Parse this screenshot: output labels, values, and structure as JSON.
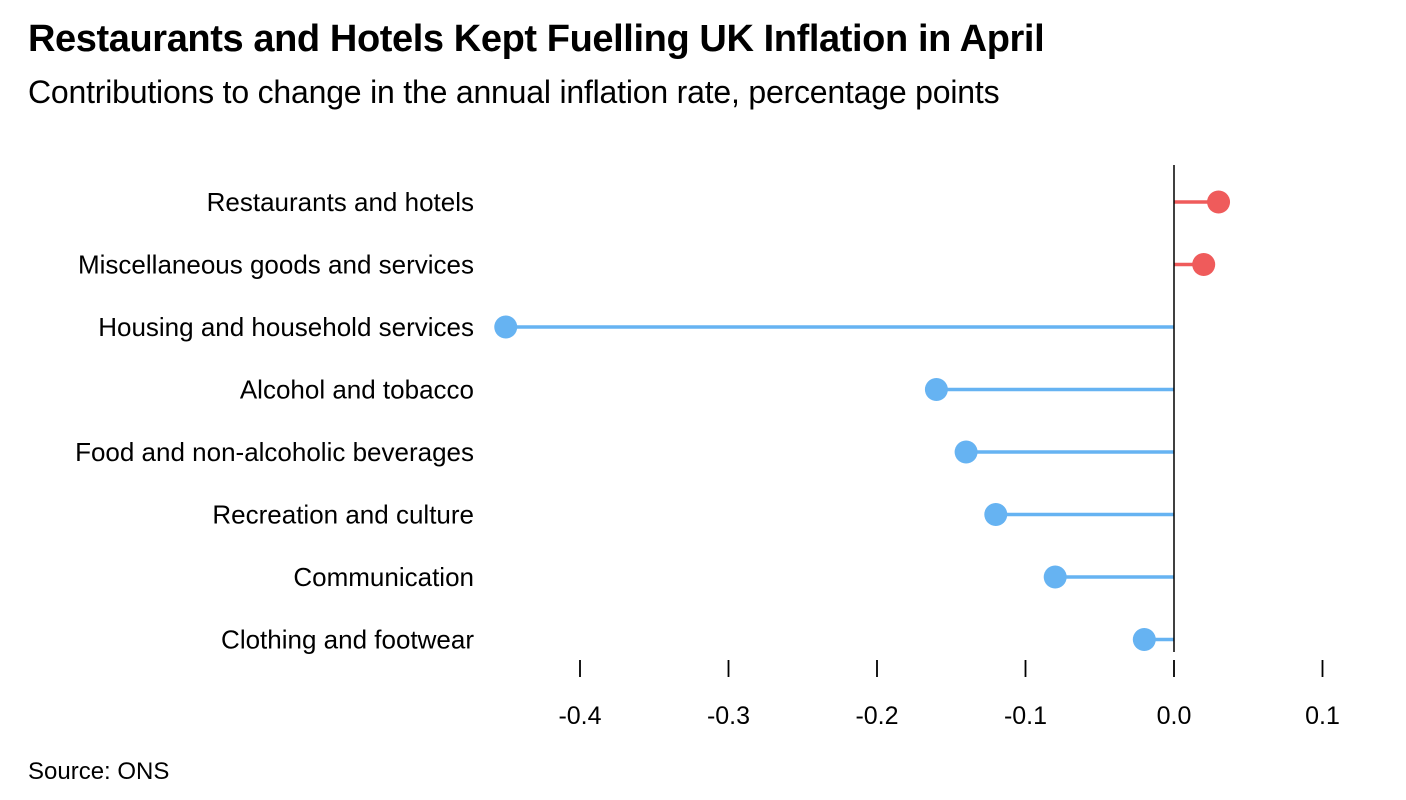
{
  "title": "Restaurants and Hotels Kept Fuelling UK Inflation in April",
  "subtitle": "Contributions to change in the annual inflation rate, percentage points",
  "source": "Source: ONS",
  "colors": {
    "positive": "#ef5b5b",
    "negative": "#66b3f2",
    "axis": "#000000"
  },
  "chart_data": {
    "type": "lollipop",
    "title": "Restaurants and Hotels Kept Fuelling UK Inflation in April",
    "subtitle": "Contributions to change in the annual inflation rate, percentage points",
    "orientation": "horizontal",
    "categories": [
      "Restaurants and hotels",
      "Miscellaneous goods and services",
      "Housing and household services",
      "Alcohol and tobacco",
      "Food and non-alcoholic beverages",
      "Recreation and culture",
      "Communication",
      "Clothing and footwear"
    ],
    "values": [
      0.03,
      0.02,
      -0.45,
      -0.16,
      -0.14,
      -0.12,
      -0.08,
      -0.02
    ],
    "xlim": [
      -0.46,
      0.1
    ],
    "xticks": [
      -0.4,
      -0.3,
      -0.2,
      -0.1,
      0.0,
      0.1
    ],
    "xtick_labels": [
      "-0.4",
      "-0.3",
      "-0.2",
      "-0.1",
      "0.0",
      "0.1"
    ],
    "grid": false,
    "legend": "none"
  }
}
